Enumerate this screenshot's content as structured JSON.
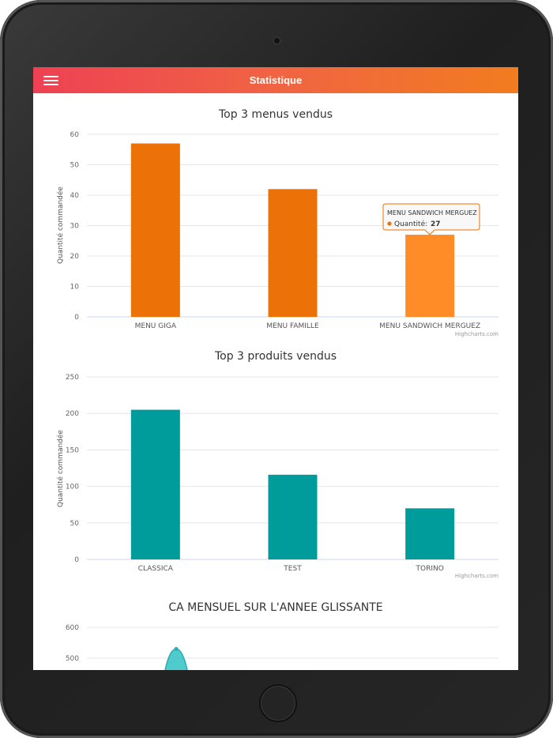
{
  "appbar": {
    "title": "Statistique",
    "menu_icon": "hamburger-icon",
    "gradient": [
      "#ee4154",
      "#f27c1f"
    ]
  },
  "chart_data": [
    {
      "type": "bar",
      "title": "Top 3 menus vendus",
      "categories": [
        "MENU GIGA",
        "MENU FAMILLE",
        "MENU SANDWICH MERGUEZ"
      ],
      "values": [
        57,
        42,
        27
      ],
      "ylabel": "Quantité commandée",
      "ylim": [
        0,
        60
      ],
      "yticks": [
        0,
        10,
        20,
        30,
        40,
        50,
        60
      ],
      "color": "#ec7208",
      "hover_color": "#ff8c26",
      "credits": "Highcharts.com",
      "tooltip": {
        "category": "MENU SANDWICH MERGUEZ",
        "series_label": "Quantité:",
        "value": "27"
      }
    },
    {
      "type": "bar",
      "title": "Top 3 produits vendus",
      "categories": [
        "CLASSICA",
        "TEST",
        "TORINO"
      ],
      "values": [
        205,
        116,
        70
      ],
      "ylabel": "Quantité commandée",
      "ylim": [
        0,
        250
      ],
      "yticks": [
        0,
        50,
        100,
        150,
        200,
        250
      ],
      "color": "#009b9b",
      "credits": "Highcharts.com"
    },
    {
      "type": "area",
      "title": "CA MENSUEL SUR L'ANNEE GLISSANTE",
      "ylim": [
        0,
        600
      ],
      "yticks": [
        500,
        600
      ],
      "visible_peak": 530,
      "color": "#3cc4c8"
    }
  ]
}
